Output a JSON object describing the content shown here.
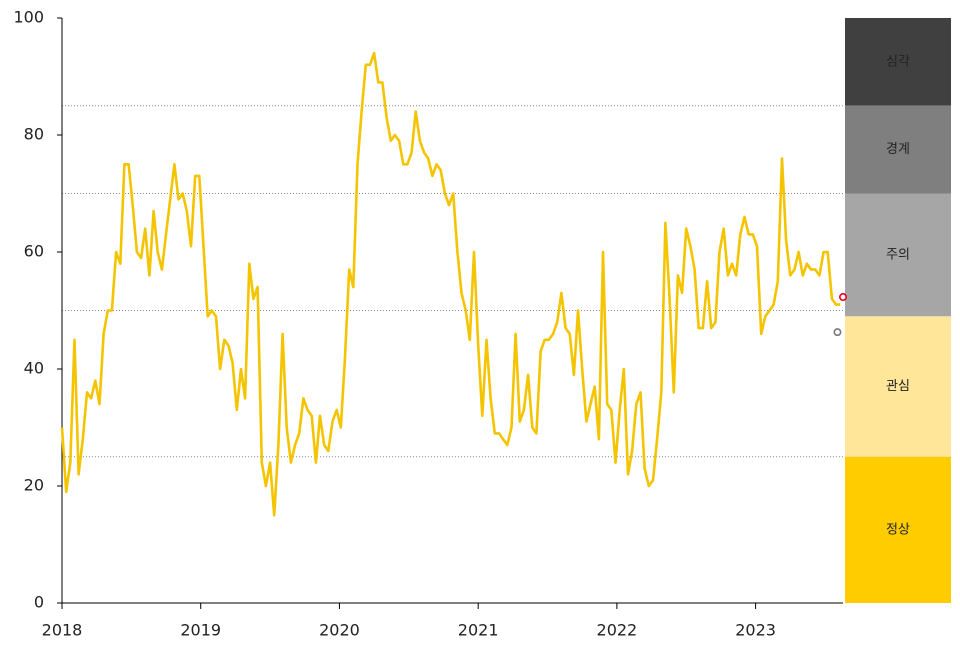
{
  "chart_data": {
    "type": "line",
    "x": [
      2018.0,
      2018.03,
      2018.06,
      2018.09,
      2018.12,
      2018.15,
      2018.18,
      2018.21,
      2018.24,
      2018.27,
      2018.3,
      2018.33,
      2018.36,
      2018.39,
      2018.42,
      2018.45,
      2018.48,
      2018.51,
      2018.54,
      2018.57,
      2018.6,
      2018.63,
      2018.66,
      2018.69,
      2018.72,
      2018.75,
      2018.78,
      2018.81,
      2018.84,
      2018.87,
      2018.9,
      2018.93,
      2018.96,
      2018.99,
      2019.02,
      2019.05,
      2019.08,
      2019.11,
      2019.14,
      2019.17,
      2019.2,
      2019.23,
      2019.26,
      2019.29,
      2019.32,
      2019.35,
      2019.38,
      2019.41,
      2019.44,
      2019.47,
      2019.5,
      2019.53,
      2019.56,
      2019.59,
      2019.62,
      2019.65,
      2019.68,
      2019.71,
      2019.74,
      2019.77,
      2019.8,
      2019.83,
      2019.86,
      2019.89,
      2019.92,
      2019.95,
      2019.98,
      2020.01,
      2020.04,
      2020.07,
      2020.1,
      2020.13,
      2020.16,
      2020.19,
      2020.22,
      2020.25,
      2020.28,
      2020.31,
      2020.34,
      2020.37,
      2020.4,
      2020.43,
      2020.46,
      2020.49,
      2020.52,
      2020.55,
      2020.58,
      2020.61,
      2020.64,
      2020.67,
      2020.7,
      2020.73,
      2020.76,
      2020.79,
      2020.82,
      2020.85,
      2020.88,
      2020.91,
      2020.94,
      2020.97,
      2021.0,
      2021.03,
      2021.06,
      2021.09,
      2021.12,
      2021.15,
      2021.18,
      2021.21,
      2021.24,
      2021.27,
      2021.3,
      2021.33,
      2021.36,
      2021.39,
      2021.42,
      2021.45,
      2021.48,
      2021.51,
      2021.54,
      2021.57,
      2021.6,
      2021.63,
      2021.66,
      2021.69,
      2021.72,
      2021.75,
      2021.78,
      2021.81,
      2021.84,
      2021.87,
      2021.9,
      2021.93,
      2021.96,
      2021.99,
      2022.02,
      2022.05,
      2022.08,
      2022.11,
      2022.14,
      2022.17,
      2022.2,
      2022.23,
      2022.26,
      2022.29,
      2022.32,
      2022.35,
      2022.38,
      2022.41,
      2022.44,
      2022.47,
      2022.5,
      2022.53,
      2022.56,
      2022.59,
      2022.62,
      2022.65,
      2022.68,
      2022.71,
      2022.74,
      2022.77,
      2022.8,
      2022.83,
      2022.86,
      2022.89,
      2022.92,
      2022.95,
      2022.98,
      2023.01,
      2023.04,
      2023.07,
      2023.1,
      2023.13,
      2023.16,
      2023.19,
      2023.22,
      2023.25,
      2023.28,
      2023.31,
      2023.34,
      2023.37,
      2023.4,
      2023.43,
      2023.46,
      2023.49,
      2023.52,
      2023.55,
      2023.58,
      2023.61
    ],
    "series": [
      {
        "color": "#f5c400",
        "values": [
          30,
          19,
          24,
          45,
          22,
          28,
          36,
          35,
          38,
          34,
          46,
          50,
          50,
          60,
          58,
          75,
          75,
          68,
          60,
          59,
          64,
          56,
          67,
          60,
          57,
          63,
          69,
          75,
          69,
          70,
          67,
          61,
          73,
          73,
          61,
          49,
          50,
          49,
          40,
          45,
          44,
          41,
          33,
          40,
          35,
          58,
          52,
          54,
          24,
          20,
          24,
          15,
          27,
          46,
          30,
          24,
          27,
          29,
          35,
          33,
          32,
          24,
          32,
          27,
          26,
          31,
          33,
          30,
          42,
          57,
          54,
          75,
          84,
          92,
          92,
          94,
          89,
          89,
          83,
          79,
          80,
          79,
          75,
          75,
          77,
          84,
          79,
          77,
          76,
          73,
          75,
          74,
          70,
          68,
          70,
          60,
          53,
          50,
          45,
          60,
          44,
          32,
          45,
          35,
          29,
          29,
          28,
          27,
          30,
          46,
          31,
          33,
          39,
          30,
          29,
          43,
          45,
          45,
          46,
          48,
          53,
          47,
          46,
          39,
          50,
          40,
          31,
          34,
          37,
          28,
          60,
          34,
          33,
          24,
          33,
          40,
          22,
          26,
          34,
          36,
          23,
          20,
          21,
          28,
          36,
          65,
          52,
          36,
          56,
          53,
          64,
          61,
          57,
          47,
          47,
          55,
          47,
          48,
          60,
          64,
          56,
          58,
          56,
          63,
          66,
          63,
          63,
          61,
          46,
          49,
          50,
          51,
          55,
          76,
          62,
          56,
          57,
          60,
          56,
          58,
          57,
          57,
          56,
          60,
          60,
          52,
          51,
          51
        ]
      }
    ],
    "markers": [
      {
        "x": 2023.63,
        "value": 52.3,
        "color": "#e8001c"
      },
      {
        "x": 2023.59,
        "value": 46.3,
        "color": "#777777"
      }
    ],
    "xlim": [
      2018,
      2023.63
    ],
    "xticks": [
      2018,
      2019,
      2020,
      2021,
      2022,
      2023
    ],
    "ylim": [
      0,
      100
    ],
    "yticks": [
      0,
      20,
      40,
      60,
      80,
      100
    ],
    "reference_lines": [
      25,
      50,
      70,
      85
    ],
    "bands": [
      {
        "label": "심각",
        "from": 85,
        "to": 100,
        "color": "#404040"
      },
      {
        "label": "경계",
        "from": 70,
        "to": 85,
        "color": "#7f7f7f"
      },
      {
        "label": "주의",
        "from": 49,
        "to": 70,
        "color": "#a6a6a6"
      },
      {
        "label": "관심",
        "from": 25,
        "to": 49,
        "color": "#ffe699"
      },
      {
        "label": "정상",
        "from": 0,
        "to": 25,
        "color": "#ffcc00"
      }
    ]
  }
}
